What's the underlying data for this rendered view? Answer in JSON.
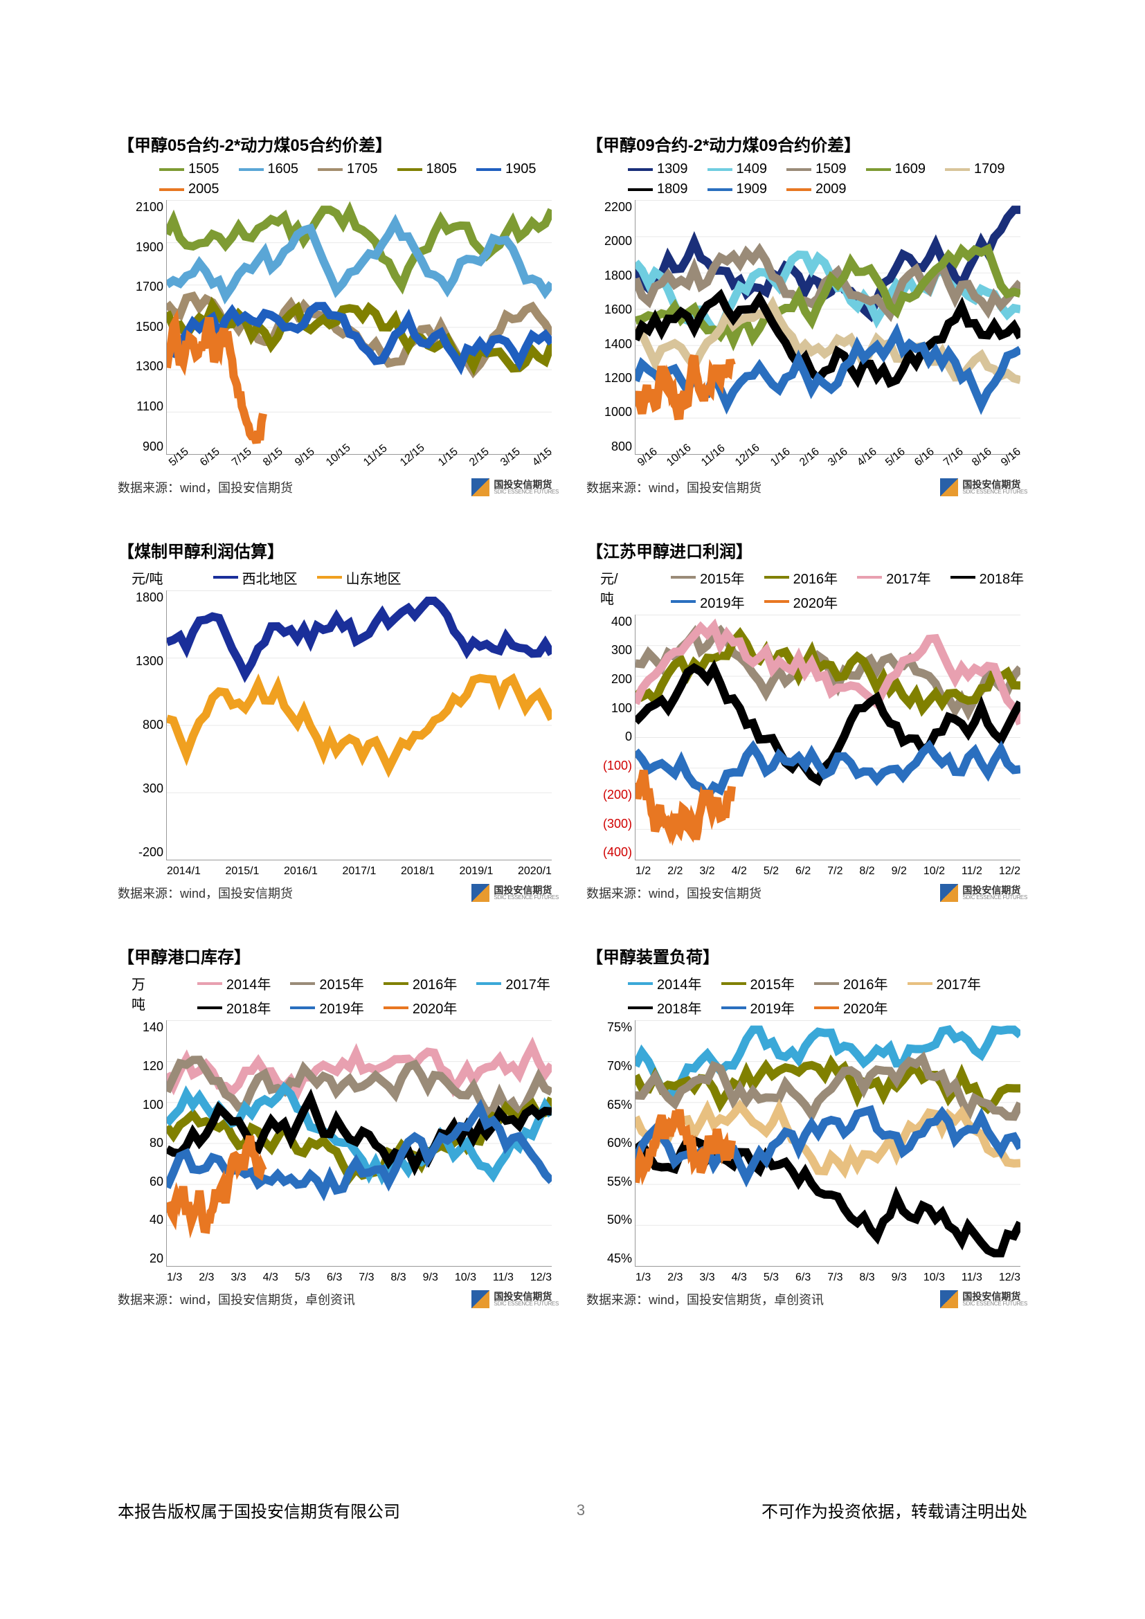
{
  "page": {
    "number": "3",
    "copyright": "本报告版权属于国投安信期货有限公司",
    "disclaimer": "不可作为投资依据，转载请注明出处"
  },
  "logo": {
    "cn": "国投安信期货",
    "en": "SDIC ESSENCE FUTURES"
  },
  "charts": [
    {
      "title": "【甲醇05合约-2*动力煤05合约价差】",
      "type": "line",
      "source": "数据来源：wind，国投安信期货",
      "ylim": [
        900,
        2100
      ],
      "ytick_step": 200,
      "y_ticks": [
        "2100",
        "1900",
        "1700",
        "1500",
        "1300",
        "1100",
        "900"
      ],
      "x_ticks": [
        "5/15",
        "6/15",
        "7/15",
        "8/15",
        "9/15",
        "10/15",
        "11/15",
        "12/15",
        "1/15",
        "2/15",
        "3/15",
        "4/15"
      ],
      "x_rotated": true,
      "series": [
        {
          "name": "1505",
          "color": "#7e9b33"
        },
        {
          "name": "1605",
          "color": "#5aa6d6"
        },
        {
          "name": "1705",
          "color": "#a38d6d"
        },
        {
          "name": "1805",
          "color": "#808000"
        },
        {
          "name": "1905",
          "color": "#1f5fbf"
        },
        {
          "name": "2005",
          "color": "#e87722"
        }
      ]
    },
    {
      "title": "【甲醇09合约-2*动力煤09合约价差】",
      "type": "line",
      "source": "数据来源：wind，国投安信期货",
      "ylim": [
        800,
        2200
      ],
      "ytick_step": 200,
      "y_ticks": [
        "2200",
        "2000",
        "1800",
        "1600",
        "1400",
        "1200",
        "1000",
        "800"
      ],
      "x_ticks": [
        "9/16",
        "10/16",
        "11/16",
        "12/16",
        "1/16",
        "2/16",
        "3/16",
        "4/16",
        "5/16",
        "6/16",
        "7/16",
        "8/16",
        "9/16"
      ],
      "x_rotated": true,
      "series": [
        {
          "name": "1309",
          "color": "#1a2f7a"
        },
        {
          "name": "1409",
          "color": "#6fcde0"
        },
        {
          "name": "1509",
          "color": "#9a8b78"
        },
        {
          "name": "1609",
          "color": "#7e9b33"
        },
        {
          "name": "1709",
          "color": "#d8c49a"
        },
        {
          "name": "1809",
          "color": "#000000"
        },
        {
          "name": "1909",
          "color": "#2a6fbf"
        },
        {
          "name": "2009",
          "color": "#e87722"
        }
      ]
    },
    {
      "title": "【煤制甲醇利润估算】",
      "type": "line",
      "source": "数据来源：wind，国投安信期货",
      "y_unit": "元/吨",
      "ylim": [
        -200,
        1800
      ],
      "ytick_step": 500,
      "y_ticks": [
        "1800",
        "1300",
        "800",
        "300",
        "-200"
      ],
      "x_ticks": [
        "2014/1",
        "2015/1",
        "2016/1",
        "2017/1",
        "2018/1",
        "2019/1",
        "2020/1"
      ],
      "x_rotated": false,
      "series": [
        {
          "name": "西北地区",
          "color": "#1a2f9a"
        },
        {
          "name": "山东地区",
          "color": "#f0a020"
        }
      ]
    },
    {
      "title": "【江苏甲醇进口利润】",
      "type": "line",
      "source": "数据来源：wind，国投安信期货",
      "y_unit": "元/吨",
      "ylim": [
        -400,
        400
      ],
      "ytick_step": 100,
      "y_ticks": [
        "400",
        "300",
        "200",
        "100",
        "0",
        "(100)",
        "(200)",
        "(300)",
        "(400)"
      ],
      "y_neg_start": 5,
      "x_ticks": [
        "1/2",
        "2/2",
        "3/2",
        "4/2",
        "5/2",
        "6/2",
        "7/2",
        "8/2",
        "9/2",
        "10/2",
        "11/2",
        "12/2"
      ],
      "x_rotated": false,
      "series": [
        {
          "name": "2015年",
          "color": "#9a8b78"
        },
        {
          "name": "2016年",
          "color": "#808000"
        },
        {
          "name": "2017年",
          "color": "#e8a0b0"
        },
        {
          "name": "2018年",
          "color": "#000000"
        },
        {
          "name": "2019年",
          "color": "#2a6fbf"
        },
        {
          "name": "2020年",
          "color": "#e87722"
        }
      ]
    },
    {
      "title": "【甲醇港口库存】",
      "type": "line",
      "source": "数据来源：wind，国投安信期货，卓创资讯",
      "y_unit": "万吨",
      "ylim": [
        20,
        140
      ],
      "ytick_step": 20,
      "y_ticks": [
        "140",
        "120",
        "100",
        "80",
        "60",
        "40",
        "20"
      ],
      "x_ticks": [
        "1/3",
        "2/3",
        "3/3",
        "4/3",
        "5/3",
        "6/3",
        "7/3",
        "8/3",
        "9/3",
        "10/3",
        "11/3",
        "12/3"
      ],
      "x_rotated": false,
      "series": [
        {
          "name": "2014年",
          "color": "#e8a0b0"
        },
        {
          "name": "2015年",
          "color": "#9a8b78"
        },
        {
          "name": "2016年",
          "color": "#808000"
        },
        {
          "name": "2017年",
          "color": "#3aa8d8"
        },
        {
          "name": "2018年",
          "color": "#000000"
        },
        {
          "name": "2019年",
          "color": "#2a6fbf"
        },
        {
          "name": "2020年",
          "color": "#e87722"
        }
      ]
    },
    {
      "title": "【甲醇装置负荷】",
      "type": "line",
      "source": "数据来源：wind，国投安信期货，卓创资讯",
      "ylim": [
        0.45,
        0.75
      ],
      "ytick_step": 0.05,
      "y_ticks": [
        "75%",
        "70%",
        "65%",
        "60%",
        "55%",
        "50%",
        "45%"
      ],
      "x_ticks": [
        "1/3",
        "2/3",
        "3/3",
        "4/3",
        "5/3",
        "6/3",
        "7/3",
        "8/3",
        "9/3",
        "10/3",
        "11/3",
        "12/3"
      ],
      "x_rotated": false,
      "series": [
        {
          "name": "2014年",
          "color": "#3aa8d8"
        },
        {
          "name": "2015年",
          "color": "#808000"
        },
        {
          "name": "2016年",
          "color": "#9a8b78"
        },
        {
          "name": "2017年",
          "color": "#e8c080"
        },
        {
          "name": "2018年",
          "color": "#000000"
        },
        {
          "name": "2019年",
          "color": "#2a6fbf"
        },
        {
          "name": "2020年",
          "color": "#e87722"
        }
      ]
    }
  ]
}
